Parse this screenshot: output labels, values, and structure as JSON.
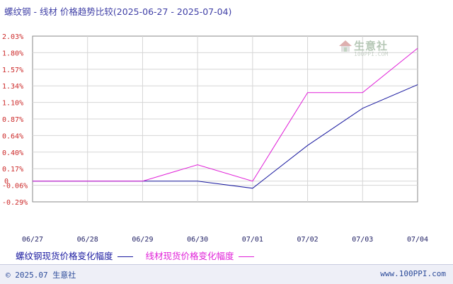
{
  "title": "螺纹钢 - 线材 价格趋势比较(2025-06-27 - 2025-07-04)",
  "watermark": {
    "name": "生意社",
    "site": "100PPI.COM"
  },
  "footer": {
    "copyright": "© 2025.07 生意社",
    "url": "www.100PPI.com"
  },
  "chart_data": {
    "type": "line",
    "categories": [
      "06/27",
      "06/28",
      "06/29",
      "06/30",
      "07/01",
      "07/02",
      "07/03",
      "07/04"
    ],
    "y_ticks": [
      "2.03%",
      "1.80%",
      "1.57%",
      "1.34%",
      "1.10%",
      "0.87%",
      "0.64%",
      "0.40%",
      "0.17%",
      "-0.06%",
      "-0.29%"
    ],
    "zero_label": "0",
    "ylim": [
      -0.29,
      2.03
    ],
    "grid": true,
    "legend_position": "bottom",
    "series": [
      {
        "name": "螺纹钢现货价格变化幅度",
        "color": "#1a1aa0",
        "values": [
          0,
          0,
          0,
          0,
          -0.1,
          0.5,
          1.02,
          1.35
        ]
      },
      {
        "name": "线材现货价格变化幅度",
        "color": "#e020d8",
        "values": [
          0,
          0,
          0,
          0.23,
          0,
          1.24,
          1.24,
          1.86
        ]
      }
    ]
  }
}
